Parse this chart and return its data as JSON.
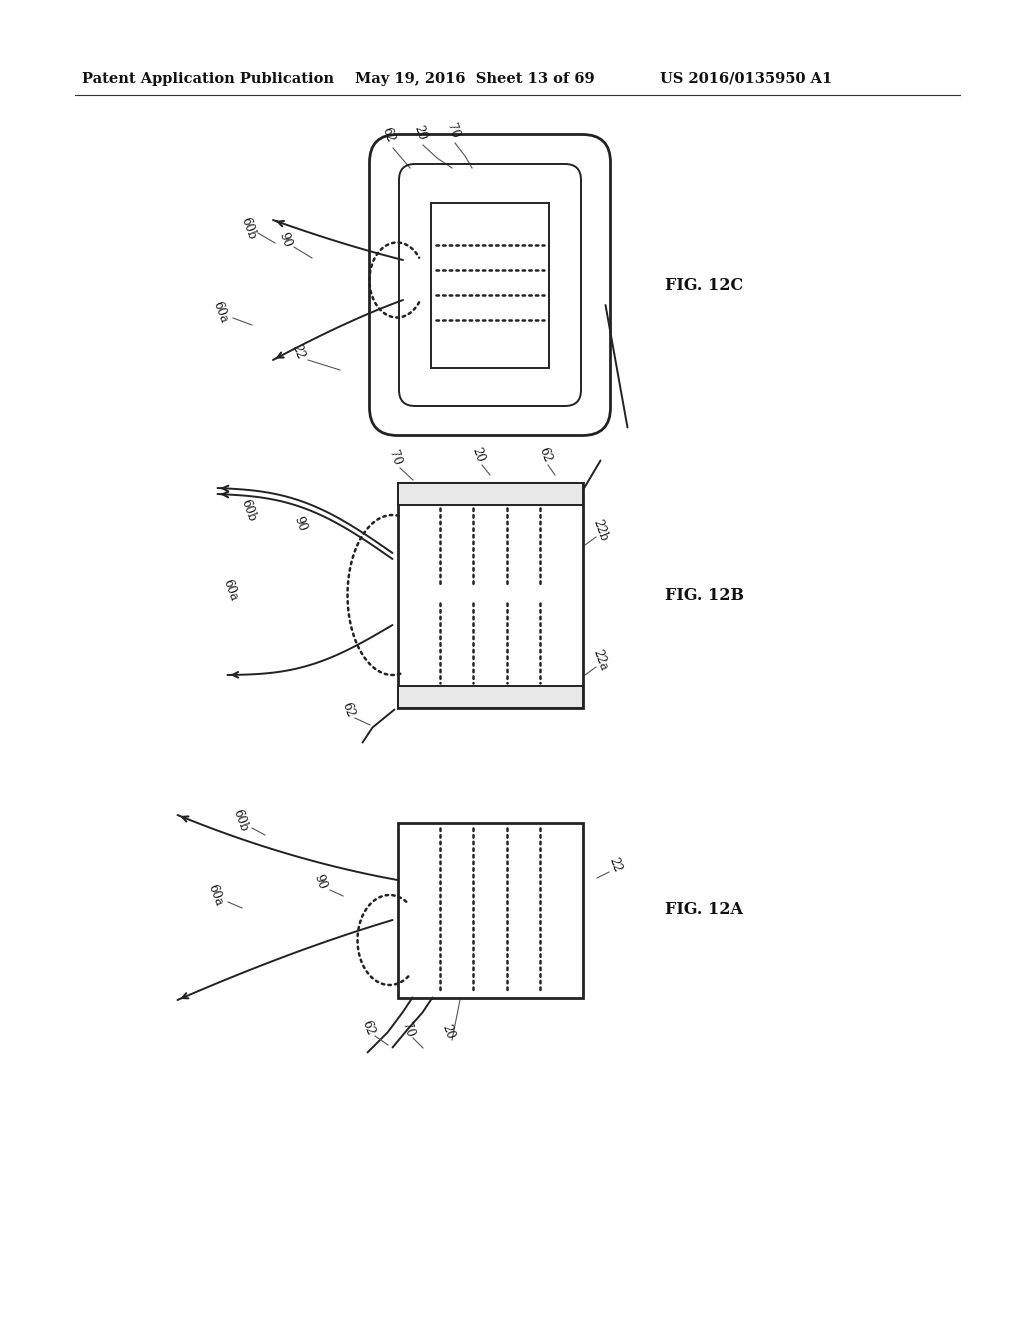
{
  "bg_color": "#ffffff",
  "line_color": "#222222",
  "header_left": "Patent Application Publication",
  "header_mid": "May 19, 2016  Sheet 13 of 69",
  "header_right": "US 2016/0135950 A1"
}
